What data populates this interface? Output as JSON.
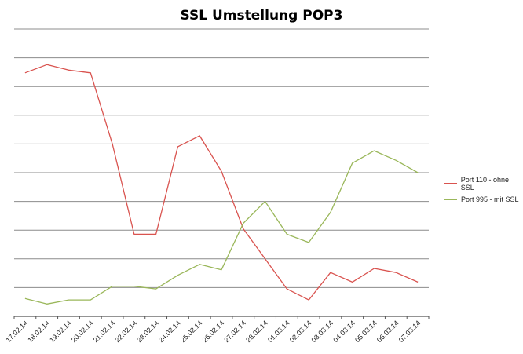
{
  "chart_data": {
    "type": "line",
    "title": "SSL Umstellung POP3",
    "xlabel": "",
    "ylabel": "",
    "categories": [
      "17.02.14",
      "18.02.14",
      "19.02.14",
      "20.02.14",
      "21.02.14",
      "22.02.14",
      "23.02.14",
      "24.02.14",
      "25.02.14",
      "26.02.14",
      "27.02.14",
      "28.02.14",
      "01.03.14",
      "02.03.14",
      "03.03.14",
      "04.03.14",
      "05.03.14",
      "06.03.14",
      "07.03.14"
    ],
    "ylim": [
      0,
      10.5
    ],
    "y_gridlines": 10,
    "y_tick_labels_visible": false,
    "grid": true,
    "legend_position": "right",
    "series": [
      {
        "name": "Port 110 - ohne SSL",
        "color": "#d9534f",
        "values": [
          8.9,
          9.2,
          9.0,
          8.9,
          6.3,
          3.0,
          3.0,
          6.2,
          6.6,
          5.3,
          3.2,
          2.1,
          1.0,
          0.6,
          1.6,
          1.25,
          1.75,
          1.6,
          1.25
        ]
      },
      {
        "name": "Port 995 - mit SSL",
        "color": "#9ab75a",
        "values": [
          0.65,
          0.45,
          0.6,
          0.6,
          1.1,
          1.1,
          1.0,
          1.5,
          1.9,
          1.7,
          3.4,
          4.2,
          3.0,
          2.7,
          3.8,
          5.6,
          6.05,
          5.7,
          5.25
        ]
      }
    ]
  }
}
